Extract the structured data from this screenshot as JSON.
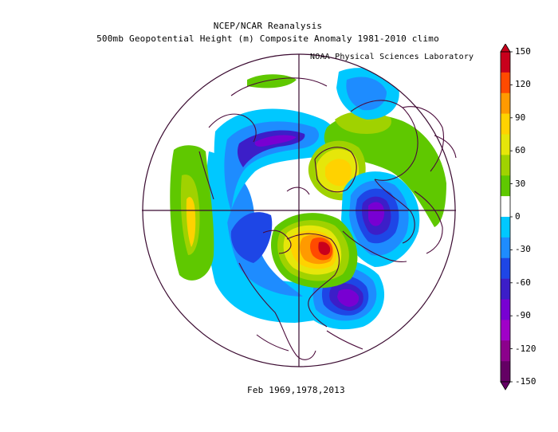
{
  "title_line1": "NCEP/NCAR Reanalysis",
  "title_line2": "500mb Geopotential Height (m) Composite Anomaly 1981-2010 climo",
  "credit": "NOAA Physical Sciences Laboratory",
  "footer": "Feb 1969,1978,2013",
  "colorbar": {
    "ticks": [
      "150",
      "120",
      "90",
      "60",
      "30",
      "0",
      "-30",
      "-60",
      "-90",
      "-120",
      "-150"
    ],
    "colors": [
      "#c8001c",
      "#ff4a00",
      "#ff9a00",
      "#ffd200",
      "#e6e60a",
      "#a0d200",
      "#5fc800",
      "#ffffff",
      "#00c8ff",
      "#1e8cff",
      "#1e46e6",
      "#3c1ec8",
      "#7800d2",
      "#a000c8",
      "#8c008c",
      "#640064"
    ],
    "units": "m"
  },
  "map": {
    "projection": "north polar stereographic",
    "anomaly_features": [
      {
        "name": "positive anomaly over Hudson Bay / northern Canada",
        "sign": "positive",
        "peak": 150
      },
      {
        "name": "positive anomaly over Greenland",
        "sign": "positive",
        "peak": 90
      },
      {
        "name": "negative anomaly over Europe / Scandinavia",
        "sign": "negative",
        "peak": -120
      },
      {
        "name": "negative anomaly over North Atlantic",
        "sign": "negative",
        "peak": -120
      },
      {
        "name": "negative anomaly over North Pacific",
        "sign": "negative",
        "peak": -90
      },
      {
        "name": "positive anomaly over central Pacific",
        "sign": "positive",
        "peak": 60
      }
    ]
  }
}
